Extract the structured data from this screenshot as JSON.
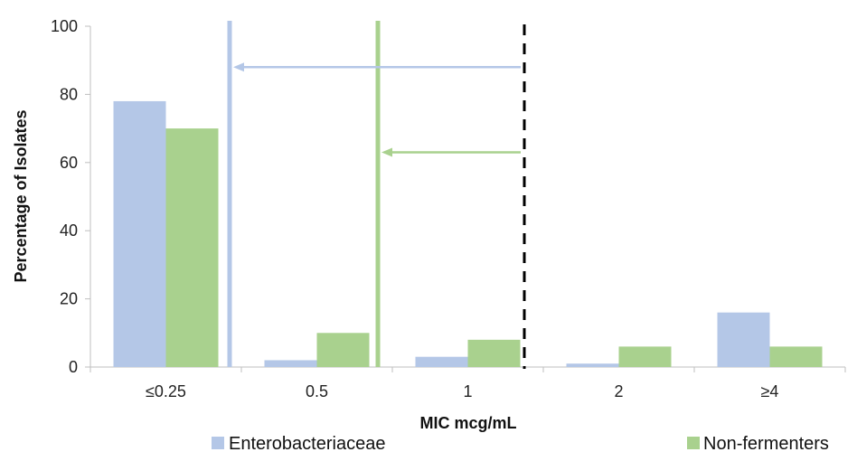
{
  "chart_data": {
    "type": "bar",
    "categories": [
      "≤0.25",
      "0.5",
      "1",
      "2",
      "≥4"
    ],
    "series": [
      {
        "name": "Enterobacteriaceae",
        "values": [
          78,
          2,
          3,
          1,
          16
        ],
        "color": "#b4c7e7"
      },
      {
        "name": "Non-fermenters",
        "values": [
          70,
          10,
          8,
          6,
          6
        ],
        "color": "#a9d18e"
      }
    ],
    "xlabel": "MIC mcg/mL",
    "ylabel": "Percentage of Isolates",
    "ylim": [
      0,
      100
    ],
    "yticks": [
      0,
      20,
      40,
      60,
      80,
      100
    ],
    "grid": false,
    "legend": "bottom",
    "annotations": {
      "breakpoint_line": {
        "style": "dashed",
        "color": "#000000"
      },
      "enterobacteriaceae_line": {
        "color": "#b4c7e7",
        "arrow_y": 88
      },
      "non_fermenters_line": {
        "color": "#a9d18e",
        "arrow_y": 63
      }
    }
  }
}
